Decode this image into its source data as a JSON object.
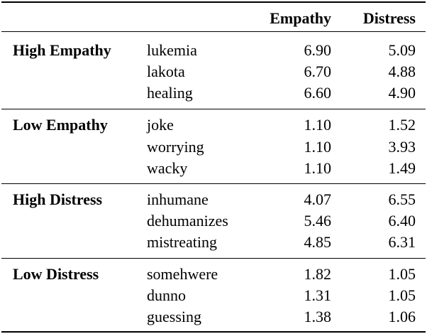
{
  "header": {
    "empathy": "Empathy",
    "distress": "Distress"
  },
  "groups": [
    {
      "label": "High Empathy",
      "rows": [
        {
          "word": "lukemia",
          "empathy": "6.90",
          "distress": "5.09"
        },
        {
          "word": "lakota",
          "empathy": "6.70",
          "distress": "4.88"
        },
        {
          "word": "healing",
          "empathy": "6.60",
          "distress": "4.90"
        }
      ]
    },
    {
      "label": "Low Empathy",
      "rows": [
        {
          "word": "joke",
          "empathy": "1.10",
          "distress": "1.52"
        },
        {
          "word": "worrying",
          "empathy": "1.10",
          "distress": "3.93"
        },
        {
          "word": "wacky",
          "empathy": "1.10",
          "distress": "1.49"
        }
      ]
    },
    {
      "label": "High Distress",
      "rows": [
        {
          "word": "inhumane",
          "empathy": "4.07",
          "distress": "6.55"
        },
        {
          "word": "dehumanizes",
          "empathy": "5.46",
          "distress": "6.40"
        },
        {
          "word": "mistreating",
          "empathy": "4.85",
          "distress": "6.31"
        }
      ]
    },
    {
      "label": "Low Distress",
      "rows": [
        {
          "word": "somehwere",
          "empathy": "1.82",
          "distress": "1.05"
        },
        {
          "word": "dunno",
          "empathy": "1.31",
          "distress": "1.05"
        },
        {
          "word": "guessing",
          "empathy": "1.38",
          "distress": "1.06"
        }
      ]
    }
  ]
}
